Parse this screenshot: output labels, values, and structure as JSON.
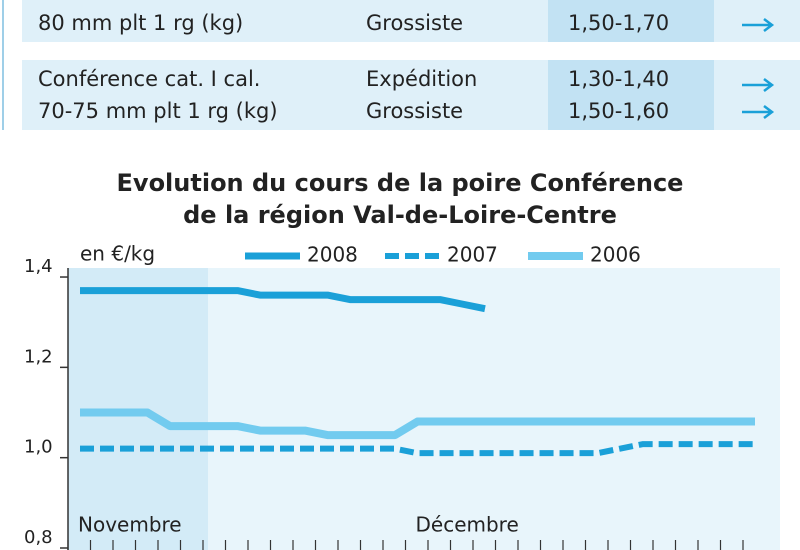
{
  "table": {
    "rows": [
      {
        "product": [
          "80 mm plt 1 rg (kg)"
        ],
        "market": [
          "Grossiste"
        ],
        "price": [
          "1,50-1,70"
        ]
      },
      {
        "product": [
          "Conférence cat. I cal.",
          "70-75 mm plt 1 rg (kg)"
        ],
        "market": [
          "Expédition",
          "Grossiste"
        ],
        "price": [
          "1,30-1,40",
          "1,50-1,60"
        ]
      }
    ]
  },
  "chart_data": {
    "type": "line",
    "title": [
      "Evolution du cours de la poire Conférence",
      "de la région Val-de-Loire-Centre"
    ],
    "y_label": "en €/kg",
    "categories": [
      "Novembre",
      null,
      null,
      null,
      null,
      null,
      null,
      null,
      null,
      null,
      null,
      null,
      null,
      null,
      null,
      "Décembre",
      null,
      null,
      null,
      null,
      null,
      null,
      null,
      null,
      null,
      null,
      null,
      null,
      null,
      null,
      null
    ],
    "series": [
      {
        "name": "2008",
        "color": "#1aa0d8",
        "style": "solid",
        "values": [
          1.37,
          1.37,
          1.37,
          1.37,
          1.37,
          1.37,
          1.37,
          1.37,
          1.36,
          1.36,
          1.36,
          1.36,
          1.35,
          1.35,
          1.35,
          1.35,
          1.35,
          1.34,
          1.33,
          null,
          null,
          null,
          null,
          null,
          null,
          null,
          null,
          null,
          null,
          null,
          null
        ]
      },
      {
        "name": "2007",
        "color": "#1aa0d8",
        "style": "dashed",
        "values": [
          1.02,
          1.02,
          1.02,
          1.02,
          1.02,
          1.02,
          1.02,
          1.02,
          1.02,
          1.02,
          1.02,
          1.02,
          1.02,
          1.02,
          1.02,
          1.01,
          1.01,
          1.01,
          1.01,
          1.01,
          1.01,
          1.01,
          1.01,
          1.01,
          1.02,
          1.03,
          1.03,
          1.03,
          1.03,
          1.03,
          1.03
        ]
      },
      {
        "name": "2006",
        "color": "#72cbef",
        "style": "solid",
        "values": [
          1.1,
          1.1,
          1.1,
          1.1,
          1.07,
          1.07,
          1.07,
          1.07,
          1.06,
          1.06,
          1.06,
          1.05,
          1.05,
          1.05,
          1.05,
          1.08,
          1.08,
          1.08,
          1.08,
          1.08,
          1.08,
          1.08,
          1.08,
          1.08,
          1.08,
          1.08,
          1.08,
          1.08,
          1.08,
          1.08,
          1.08
        ]
      }
    ],
    "ylim": [
      0.8,
      1.42
    ],
    "yticks": [
      {
        "value": 0.8,
        "label": "0,8"
      },
      {
        "value": 1.0,
        "label": "1,0"
      },
      {
        "value": 1.2,
        "label": "1,2"
      },
      {
        "value": 1.4,
        "label": "1,4"
      }
    ]
  }
}
